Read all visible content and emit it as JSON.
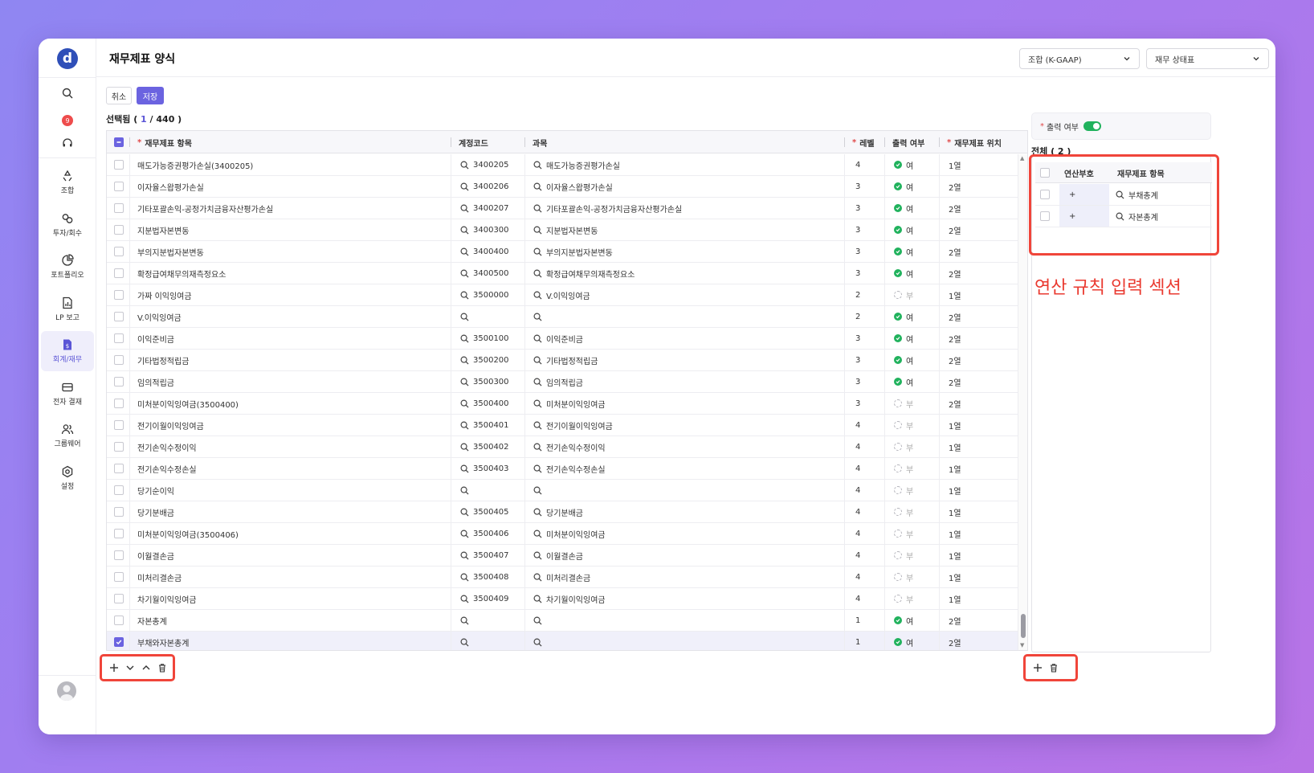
{
  "app": {
    "logo": "d",
    "title": "재무제표 양식"
  },
  "sidebar": {
    "notification_count": "9",
    "items": [
      {
        "label": "조합",
        "icon": "recycle-icon"
      },
      {
        "label": "투자/회수",
        "icon": "exchange-icon"
      },
      {
        "label": "포트폴리오",
        "icon": "pie-chart-icon"
      },
      {
        "label": "LP 보고",
        "icon": "report-icon"
      },
      {
        "label": "회계/재무",
        "icon": "finance-icon",
        "active": true
      },
      {
        "label": "전자 결재",
        "icon": "mail-icon"
      },
      {
        "label": "그룹웨어",
        "icon": "group-icon"
      },
      {
        "label": "설정",
        "icon": "gear-icon"
      }
    ]
  },
  "header": {
    "select1": "조합 (K-GAAP)",
    "select2": "재무 상태표"
  },
  "actions": {
    "cancel": "취소",
    "save": "저장"
  },
  "selection": {
    "prefix": "선택됨 ( ",
    "count": "1",
    "total": " / 440 )"
  },
  "table": {
    "headers": {
      "item": "재무제표 항목",
      "code": "계정코드",
      "subject": "과목",
      "level": "레벨",
      "output": "출력 여부",
      "position": "재무제표 위치"
    },
    "rows": [
      {
        "item": "매도가능증권평가손실(3400205)",
        "code": "3400205",
        "subject": "매도가능증권평가손실",
        "level": "4",
        "output": "여",
        "on": true,
        "pos": "1열"
      },
      {
        "item": "이자율스왑평가손실",
        "code": "3400206",
        "subject": "이자율스왑평가손실",
        "level": "3",
        "output": "여",
        "on": true,
        "pos": "2열"
      },
      {
        "item": "기타포괄손익-공정가치금융자산평가손실",
        "code": "3400207",
        "subject": "기타포괄손익-공정가치금융자산평가손실",
        "level": "3",
        "output": "여",
        "on": true,
        "pos": "2열"
      },
      {
        "item": "지분법자본변동",
        "code": "3400300",
        "subject": "지분법자본변동",
        "level": "3",
        "output": "여",
        "on": true,
        "pos": "2열"
      },
      {
        "item": "부의지분법자본변동",
        "code": "3400400",
        "subject": "부의지분법자본변동",
        "level": "3",
        "output": "여",
        "on": true,
        "pos": "2열"
      },
      {
        "item": "확정급여채무의재측정요소",
        "code": "3400500",
        "subject": "확정급여채무의재측정요소",
        "level": "3",
        "output": "여",
        "on": true,
        "pos": "2열"
      },
      {
        "item": "가짜 이익잉여금",
        "code": "3500000",
        "subject": "V.이익잉여금",
        "level": "2",
        "output": "부",
        "on": false,
        "pos": "1열"
      },
      {
        "item": "V.이익잉여금",
        "code": "",
        "subject": "",
        "level": "2",
        "output": "여",
        "on": true,
        "pos": "2열"
      },
      {
        "item": "이익준비금",
        "code": "3500100",
        "subject": "이익준비금",
        "level": "3",
        "output": "여",
        "on": true,
        "pos": "2열"
      },
      {
        "item": "기타법정적립금",
        "code": "3500200",
        "subject": "기타법정적립금",
        "level": "3",
        "output": "여",
        "on": true,
        "pos": "2열"
      },
      {
        "item": "임의적립금",
        "code": "3500300",
        "subject": "임의적립금",
        "level": "3",
        "output": "여",
        "on": true,
        "pos": "2열"
      },
      {
        "item": "미처분이익잉여금(3500400)",
        "code": "3500400",
        "subject": "미처분이익잉여금",
        "level": "3",
        "output": "부",
        "on": false,
        "pos": "2열"
      },
      {
        "item": "전기이월이익잉여금",
        "code": "3500401",
        "subject": "전기이월이익잉여금",
        "level": "4",
        "output": "부",
        "on": false,
        "pos": "1열"
      },
      {
        "item": "전기손익수정이익",
        "code": "3500402",
        "subject": "전기손익수정이익",
        "level": "4",
        "output": "부",
        "on": false,
        "pos": "1열"
      },
      {
        "item": "전기손익수정손실",
        "code": "3500403",
        "subject": "전기손익수정손실",
        "level": "4",
        "output": "부",
        "on": false,
        "pos": "1열"
      },
      {
        "item": "당기순이익",
        "code": "",
        "subject": "",
        "level": "4",
        "output": "부",
        "on": false,
        "pos": "1열"
      },
      {
        "item": "당기분배금",
        "code": "3500405",
        "subject": "당기분배금",
        "level": "4",
        "output": "부",
        "on": false,
        "pos": "1열"
      },
      {
        "item": "미처분이익잉여금(3500406)",
        "code": "3500406",
        "subject": "미처분이익잉여금",
        "level": "4",
        "output": "부",
        "on": false,
        "pos": "1열"
      },
      {
        "item": "이월결손금",
        "code": "3500407",
        "subject": "이월결손금",
        "level": "4",
        "output": "부",
        "on": false,
        "pos": "1열"
      },
      {
        "item": "미처리결손금",
        "code": "3500408",
        "subject": "미처리결손금",
        "level": "4",
        "output": "부",
        "on": false,
        "pos": "1열"
      },
      {
        "item": "차기월이익잉여금",
        "code": "3500409",
        "subject": "차기월이익잉여금",
        "level": "4",
        "output": "부",
        "on": false,
        "pos": "1열"
      },
      {
        "item": "자본총계",
        "code": "",
        "subject": "",
        "level": "1",
        "output": "여",
        "on": true,
        "pos": "2열"
      },
      {
        "item": "부채와자본총계",
        "code": "",
        "subject": "",
        "level": "1",
        "output": "여",
        "on": true,
        "pos": "2열",
        "checked": true
      }
    ]
  },
  "right_panel": {
    "output_label": "출력 여부",
    "total": "전체 ( 2 )",
    "headers": {
      "op": "연산부호",
      "item": "재무제표 항목"
    },
    "rows": [
      {
        "op": "+",
        "item": "부채총계"
      },
      {
        "op": "+",
        "item": "자본총계"
      }
    ],
    "annotation": "연산 규칙 입력 섹션"
  }
}
